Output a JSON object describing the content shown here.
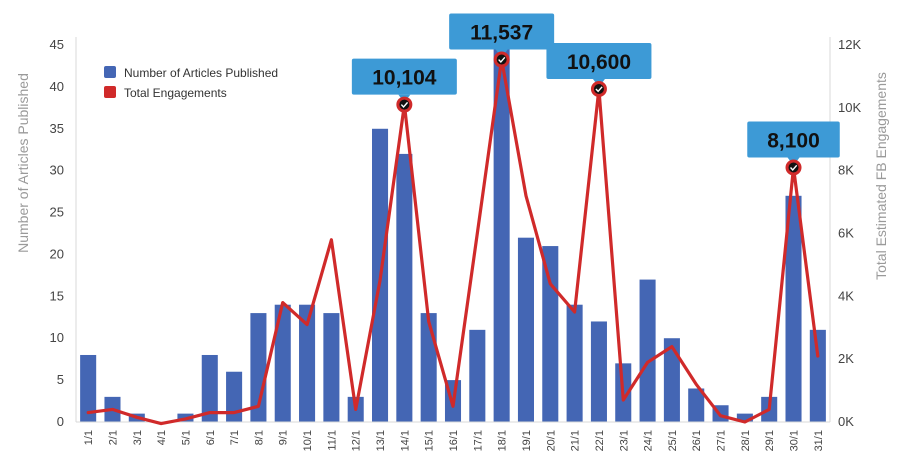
{
  "chart_data": {
    "type": "bar",
    "categories": [
      "1/1",
      "2/1",
      "3/1",
      "4/1",
      "5/1",
      "6/1",
      "7/1",
      "8/1",
      "9/1",
      "10/1",
      "11/1",
      "12/1",
      "13/1",
      "14/1",
      "15/1",
      "16/1",
      "17/1",
      "18/1",
      "19/1",
      "20/1",
      "21/1",
      "22/1",
      "23/1",
      "24/1",
      "25/1",
      "26/1",
      "27/1",
      "28/1",
      "29/1",
      "30/1",
      "31/1"
    ],
    "series": [
      {
        "name": "Number of Articles Published",
        "type": "bar",
        "axis": "left",
        "color": "#4466b4",
        "values": [
          8,
          3,
          1,
          0,
          1,
          8,
          6,
          13,
          14,
          14,
          13,
          3,
          35,
          32,
          13,
          5,
          11,
          45,
          22,
          21,
          14,
          12,
          7,
          17,
          10,
          4,
          2,
          1,
          3,
          27,
          11
        ]
      },
      {
        "name": "Total Engagements",
        "type": "line",
        "axis": "right",
        "color": "#d02a2a",
        "values": [
          300,
          400,
          150,
          -50,
          100,
          300,
          300,
          500,
          3800,
          3100,
          5800,
          400,
          4500,
          10104,
          3200,
          500,
          6000,
          11537,
          7200,
          4400,
          3500,
          10600,
          700,
          1900,
          2400,
          1200,
          200,
          0,
          400,
          8100,
          2100
        ]
      }
    ],
    "highlights": [
      {
        "category": "14/1",
        "label": "10,104"
      },
      {
        "category": "18/1",
        "label": "11,537"
      },
      {
        "category": "22/1",
        "label": "10,600"
      },
      {
        "category": "30/1",
        "label": "8,100"
      }
    ],
    "ylabel": "Number of Articles Published",
    "ylabel_right": "Total Estimated FB Engagements",
    "ylim": [
      0,
      45
    ],
    "yticks": [
      "0",
      "5",
      "10",
      "15",
      "20",
      "25",
      "30",
      "35",
      "40",
      "45"
    ],
    "ylim_right": [
      0,
      12000
    ],
    "yticks_right": [
      "0K",
      "2K",
      "4K",
      "6K",
      "8K",
      "10K",
      "12K"
    ],
    "legend_position": "top-left",
    "grid": false,
    "callout_color": "#3d9ad6"
  }
}
